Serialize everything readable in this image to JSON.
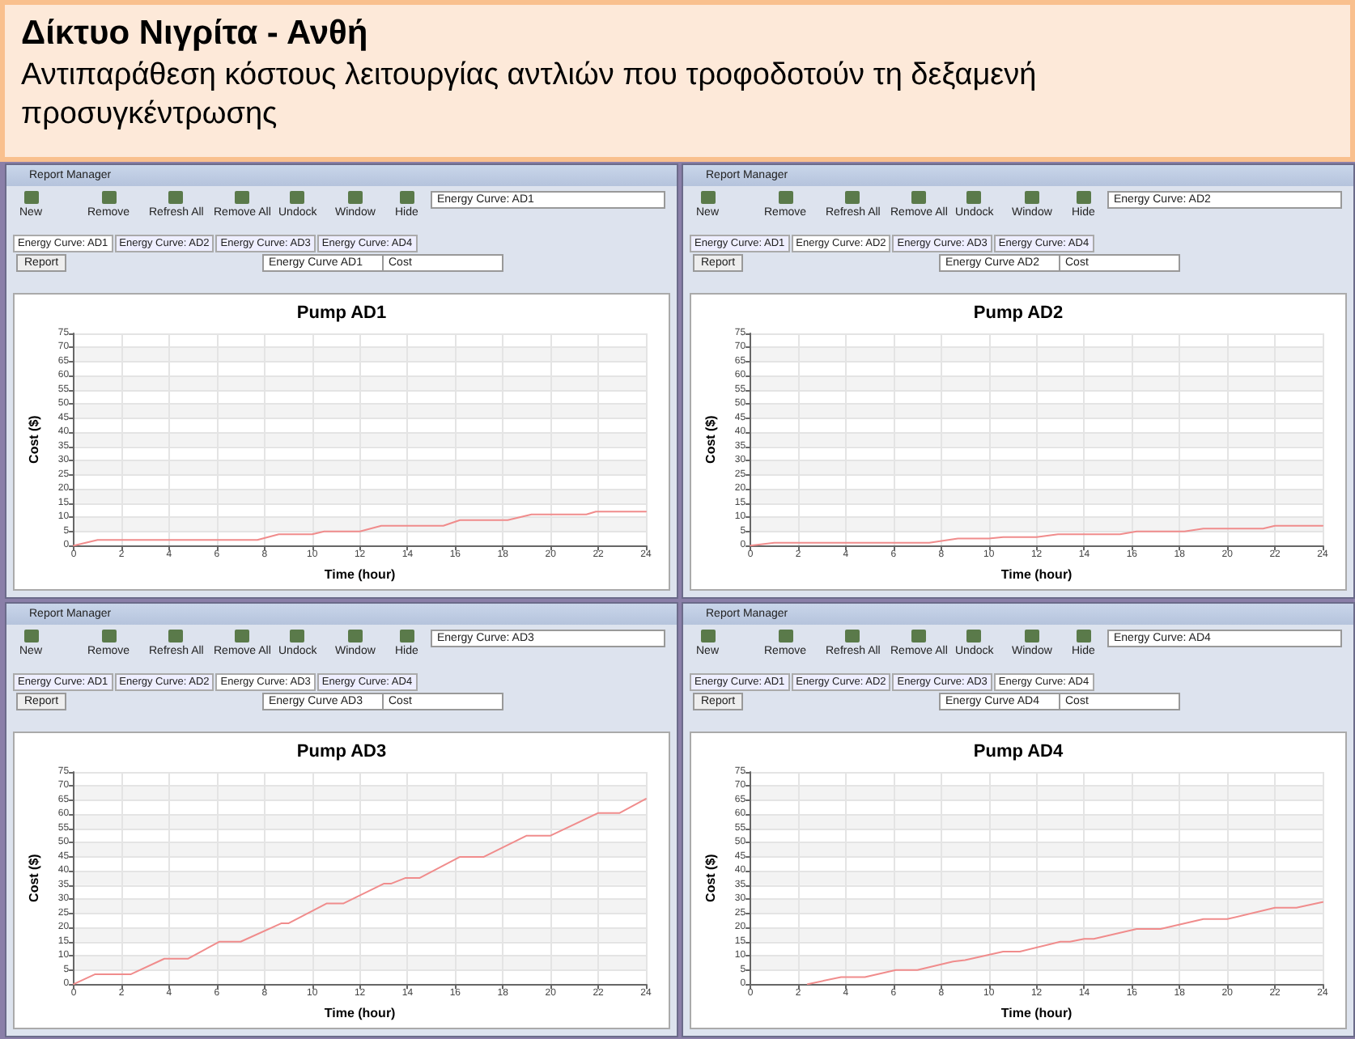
{
  "chart_data": [
    {
      "type": "line",
      "title": "Pump AD1",
      "xlabel": "Time (hour)",
      "ylabel": "Cost ($)",
      "xlim": [
        0,
        24
      ],
      "xticks": [
        0,
        2,
        4,
        6,
        8,
        10,
        12,
        14,
        16,
        18,
        20,
        22,
        24
      ],
      "ylim": [
        0,
        75
      ],
      "yticks": [
        0,
        5,
        10,
        15,
        20,
        25,
        30,
        35,
        40,
        45,
        50,
        55,
        60,
        65,
        70,
        75
      ],
      "grid": true,
      "marker": "none",
      "line_style": "solid",
      "annotations": [
        "Δίκτυο Νιγρίτα - Ανθή",
        "Αντιπαράθεση κόστους λειτουργίας αντλιών που τροφοδοτούν τη δεξαμενή προσυγκέντρωσης",
        "Report Manager",
        "New",
        "Remove",
        "Refresh All",
        "Remove All",
        "Undock",
        "Window",
        "Hide",
        "Energy Curve: AD1",
        "Energy Curve: AD1",
        "Energy Curve: AD2",
        "Energy Curve: AD3",
        "Energy Curve: AD4",
        "Report",
        "Energy Curve AD1",
        "Cost"
      ],
      "series": [
        {
          "color": "#f08c8c",
          "x": [
            0,
            1,
            7.7,
            8.6,
            10,
            10.5,
            12,
            12.9,
            15.5,
            16.2,
            18.2,
            19.2,
            21.5,
            21.9,
            24
          ],
          "values": [
            0,
            2,
            2,
            4,
            4,
            5,
            5,
            7,
            7,
            9,
            9,
            11,
            11,
            12,
            12
          ]
        }
      ]
    },
    {
      "type": "line",
      "title": "Pump AD2",
      "xlabel": "Time (hour)",
      "ylabel": "Cost ($)",
      "xlim": [
        0,
        24
      ],
      "xticks": [
        0,
        2,
        4,
        6,
        8,
        10,
        12,
        14,
        16,
        18,
        20,
        22,
        24
      ],
      "ylim": [
        0,
        75
      ],
      "yticks": [
        0,
        5,
        10,
        15,
        20,
        25,
        30,
        35,
        40,
        45,
        50,
        55,
        60,
        65,
        70,
        75
      ],
      "grid": true,
      "marker": "none",
      "line_style": "solid",
      "annotations": [
        "Report Manager",
        "New",
        "Remove",
        "Refresh All",
        "Remove All",
        "Undock",
        "Window",
        "Hide",
        "Energy Curve: AD2",
        "Energy Curve: AD1",
        "Energy Curve: AD2",
        "Energy Curve: AD3",
        "Energy Curve: AD4",
        "Report",
        "Energy Curve AD2",
        "Cost"
      ],
      "series": [
        {
          "color": "#f08c8c",
          "x": [
            0,
            1,
            7.5,
            8.7,
            10,
            10.6,
            12,
            12.9,
            15.5,
            16.2,
            18.2,
            19,
            21.5,
            22,
            24
          ],
          "values": [
            0,
            1,
            1,
            2.5,
            2.5,
            3,
            3,
            4,
            4,
            5,
            5,
            6,
            6,
            7,
            7
          ]
        }
      ]
    },
    {
      "type": "line",
      "title": "Pump AD3",
      "xlabel": "Time (hour)",
      "ylabel": "Cost ($)",
      "xlim": [
        0,
        24
      ],
      "xticks": [
        0,
        2,
        4,
        6,
        8,
        10,
        12,
        14,
        16,
        18,
        20,
        22,
        24
      ],
      "ylim": [
        0,
        75
      ],
      "yticks": [
        0,
        5,
        10,
        15,
        20,
        25,
        30,
        35,
        40,
        45,
        50,
        55,
        60,
        65,
        70,
        75
      ],
      "grid": true,
      "marker": "none",
      "line_style": "solid",
      "annotations": [
        "Report Manager",
        "New",
        "Remove",
        "Refresh All",
        "Remove All",
        "Undock",
        "Window",
        "Hide",
        "Energy Curve: AD3",
        "Energy Curve: AD1",
        "Energy Curve: AD2",
        "Energy Curve: AD3",
        "Energy Curve: AD4",
        "Report",
        "Energy Curve AD3",
        "Cost"
      ],
      "series": [
        {
          "color": "#f08c8c",
          "x": [
            0,
            0.9,
            2.4,
            3.8,
            4.8,
            6.1,
            7,
            8.7,
            9,
            10.6,
            11.3,
            13,
            13.3,
            13.9,
            14.5,
            16.2,
            17.2,
            19,
            20,
            22,
            22.9,
            24
          ],
          "values": [
            0,
            3.5,
            3.5,
            9,
            9,
            15,
            15,
            21.5,
            21.5,
            28.5,
            28.5,
            35.5,
            35.5,
            37.5,
            37.5,
            45,
            45,
            52.5,
            52.5,
            60.5,
            60.5,
            65.5
          ]
        }
      ]
    },
    {
      "type": "line",
      "title": "Pump AD4",
      "xlabel": "Time (hour)",
      "ylabel": "Cost ($)",
      "xlim": [
        0,
        24
      ],
      "xticks": [
        0,
        2,
        4,
        6,
        8,
        10,
        12,
        14,
        16,
        18,
        20,
        22,
        24
      ],
      "ylim": [
        0,
        75
      ],
      "yticks": [
        0,
        5,
        10,
        15,
        20,
        25,
        30,
        35,
        40,
        45,
        50,
        55,
        60,
        65,
        70,
        75
      ],
      "grid": true,
      "marker": "none",
      "line_style": "solid",
      "annotations": [
        "Report Manager",
        "New",
        "Remove",
        "Refresh All",
        "Remove All",
        "Undock",
        "Window",
        "Hide",
        "Energy Curve: AD4",
        "Energy Curve: AD1",
        "Energy Curve: AD2",
        "Energy Curve: AD3",
        "Energy Curve: AD4",
        "Report",
        "Energy Curve AD4",
        "Cost"
      ],
      "series": [
        {
          "color": "#f08c8c",
          "x": [
            2.4,
            3.8,
            4.8,
            6.1,
            7,
            8.5,
            9,
            10.6,
            11.3,
            13,
            13.4,
            14,
            14.4,
            16.2,
            17.2,
            19,
            20,
            22,
            22.9,
            24
          ],
          "values": [
            0,
            2.5,
            2.5,
            5,
            5,
            8,
            8.5,
            11.5,
            11.5,
            15,
            15,
            16,
            16,
            19.5,
            19.5,
            23,
            23,
            27,
            27,
            29
          ]
        }
      ]
    }
  ]
}
